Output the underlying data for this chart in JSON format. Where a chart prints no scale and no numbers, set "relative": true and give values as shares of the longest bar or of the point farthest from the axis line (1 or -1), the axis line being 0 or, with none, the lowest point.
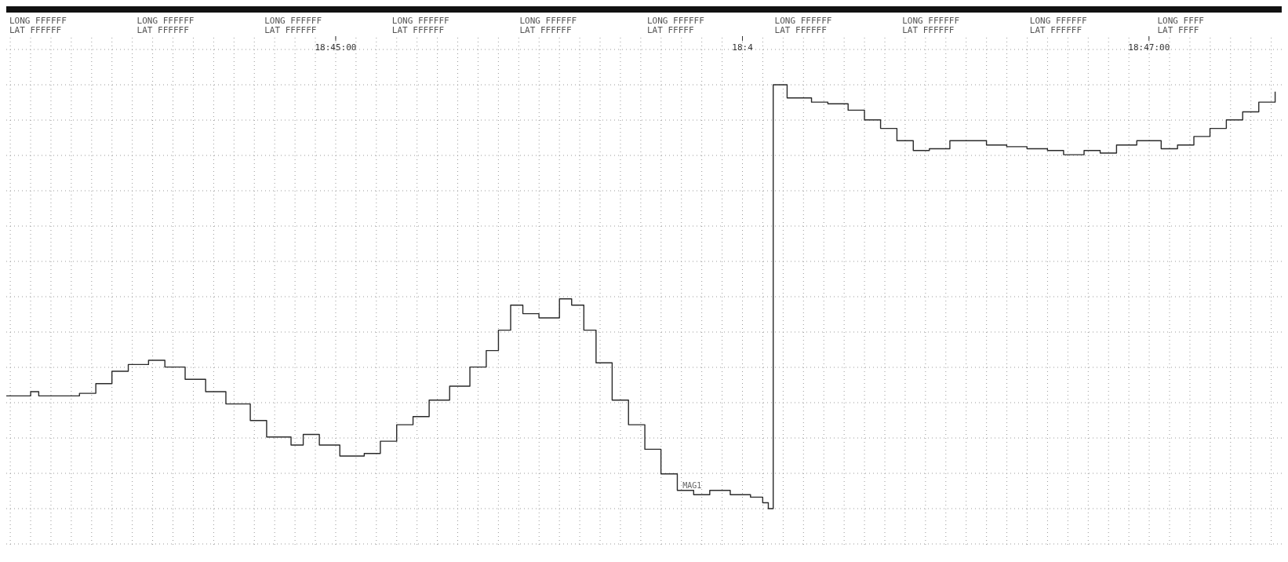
{
  "chart_data": {
    "type": "step",
    "relative": true,
    "color": "#2a2a2a",
    "grid": true,
    "line_style": "solid",
    "marker": "none",
    "xlim": [
      18.7365,
      18.78877
    ],
    "xticks": [
      {
        "value": 18.75,
        "label": "18:45:00"
      },
      {
        "value": 18.76667,
        "label": "18:4"
      },
      {
        "value": 18.78333,
        "label": "18:47:00"
      }
    ],
    "x": [
      18.7365,
      18.7375,
      18.73783,
      18.7395,
      18.74017,
      18.74083,
      18.7415,
      18.74233,
      18.743,
      18.74383,
      18.74467,
      18.7455,
      18.7465,
      18.74717,
      18.74817,
      18.74867,
      18.74933,
      18.75017,
      18.75117,
      18.75183,
      18.7525,
      18.75317,
      18.75383,
      18.75467,
      18.7555,
      18.75617,
      18.75667,
      18.75717,
      18.75767,
      18.75833,
      18.75917,
      18.75967,
      18.76017,
      18.76067,
      18.76133,
      18.762,
      18.76267,
      18.76333,
      18.764,
      18.76467,
      18.76533,
      18.76617,
      18.767,
      18.7675,
      18.76773,
      18.76793,
      18.7685,
      18.7695,
      18.77017,
      18.771,
      18.77167,
      18.77233,
      18.773,
      18.77367,
      18.77433,
      18.77517,
      18.776,
      18.77667,
      18.7775,
      18.77833,
      18.77917,
      18.77983,
      18.78067,
      18.78133,
      18.782,
      18.78283,
      18.78383,
      18.7845,
      18.78517,
      18.78583,
      18.7865,
      18.78717,
      18.78783,
      18.7885
    ],
    "values": [
      0.266,
      0.276,
      0.266,
      0.272,
      0.295,
      0.324,
      0.34,
      0.35,
      0.334,
      0.305,
      0.276,
      0.247,
      0.208,
      0.169,
      0.15,
      0.175,
      0.15,
      0.124,
      0.13,
      0.159,
      0.198,
      0.217,
      0.256,
      0.289,
      0.334,
      0.373,
      0.421,
      0.48,
      0.46,
      0.45,
      0.495,
      0.48,
      0.421,
      0.344,
      0.256,
      0.198,
      0.14,
      0.082,
      0.043,
      0.033,
      0.043,
      0.033,
      0.027,
      0.014,
      0,
      1,
      0.969,
      0.959,
      0.955,
      0.94,
      0.917,
      0.897,
      0.868,
      0.845,
      0.849,
      0.868,
      0.868,
      0.858,
      0.854,
      0.849,
      0.845,
      0.835,
      0.845,
      0.839,
      0.858,
      0.868,
      0.849,
      0.858,
      0.878,
      0.897,
      0.917,
      0.936,
      0.959,
      0.984
    ],
    "annotations": [
      "LONG FFFFFF\nLAT FFFFFF",
      "LONG FFFFFF\nLAT FFFFFF",
      "LONG FFFFFF\nLAT FFFFFF",
      "LONG FFFFFF\nLAT FFFFFF",
      "LONG FFFFFF\nLAT FFFFFF",
      "LONG FFFFFF\nLAT FFFFF",
      "LONG FFFFFF\nLAT FFFFFF",
      "LONG FFFFFF\nLAT FFFFFF",
      "LONG FFFFFF\nLAT FFFFFF",
      "LONG FFFF\nLAT FFFF",
      {
        "text": "MAG1",
        "x": 18.76467,
        "y": 0.033
      }
    ]
  }
}
